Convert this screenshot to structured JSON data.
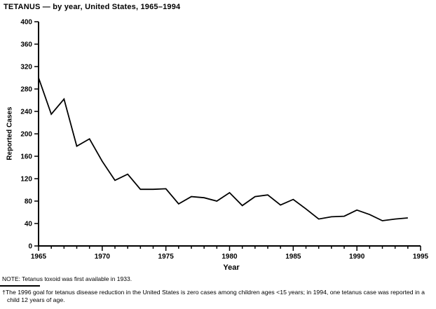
{
  "title": "TETANUS — by year, United States, 1965–1994",
  "note": "NOTE: Tetanus toxoid was first available in 1933.",
  "footnote_marker": "†",
  "footnote_text": "The 1996 goal for tetanus disease reduction in the United States is zero cases among children ages <15 years; in 1994, one tetanus case was reported in a child 12 years of age.",
  "colors": {
    "line": "#000000",
    "axis": "#000000",
    "background": "#ffffff"
  },
  "chart_data": {
    "type": "line",
    "title": "TETANUS — by year, United States, 1965–1994",
    "xlabel": "Year",
    "ylabel": "Reported Cases",
    "x": [
      1965,
      1966,
      1967,
      1968,
      1969,
      1970,
      1971,
      1972,
      1973,
      1974,
      1975,
      1976,
      1977,
      1978,
      1979,
      1980,
      1981,
      1982,
      1983,
      1984,
      1985,
      1986,
      1987,
      1988,
      1989,
      1990,
      1991,
      1992,
      1993,
      1994
    ],
    "values": [
      300,
      235,
      262,
      178,
      191,
      151,
      117,
      128,
      101,
      101,
      102,
      75,
      88,
      86,
      80,
      95,
      72,
      88,
      91,
      73,
      83,
      66,
      48,
      52,
      53,
      64,
      56,
      45,
      48,
      50
    ],
    "xlim": [
      1965,
      1995
    ],
    "ylim": [
      0,
      400
    ],
    "y_tick_step": 40,
    "x_major_tick_step": 5,
    "x_minor_tick_step": 1,
    "x_major_tick_labels": [
      "1965",
      "1970",
      "1975",
      "1980",
      "1985",
      "1990",
      "1995"
    ],
    "y_tick_labels": [
      "0",
      "40",
      "80",
      "120",
      "160",
      "200",
      "240",
      "280",
      "320",
      "360",
      "400"
    ],
    "grid": false,
    "legend": "none",
    "line_color": "#000000"
  }
}
